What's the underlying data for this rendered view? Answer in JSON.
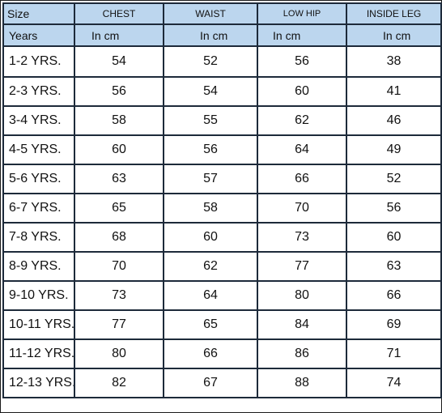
{
  "header": {
    "size": "Size",
    "chest": "CHEST",
    "waist": "WAIST",
    "low_hip": "LOW HIP",
    "inside_leg": "INSIDE LEG"
  },
  "units": {
    "years": "Years",
    "chest": "In  cm",
    "waist": "In cm",
    "low_hip": "In  cm",
    "inside_leg": "In cm"
  },
  "rows": [
    {
      "size": "1-2 YRS.",
      "chest": "54",
      "waist": "52",
      "low_hip": "56",
      "inside_leg": "38"
    },
    {
      "size": "2-3 YRS.",
      "chest": "56",
      "waist": "54",
      "low_hip": "60",
      "inside_leg": "41"
    },
    {
      "size": "3-4 YRS.",
      "chest": "58",
      "waist": "55",
      "low_hip": "62",
      "inside_leg": "46"
    },
    {
      "size": "4-5 YRS.",
      "chest": "60",
      "waist": "56",
      "low_hip": "64",
      "inside_leg": "49"
    },
    {
      "size": "5-6 YRS.",
      "chest": "63",
      "waist": "57",
      "low_hip": "66",
      "inside_leg": "52"
    },
    {
      "size": "6-7 YRS.",
      "chest": "65",
      "waist": "58",
      "low_hip": "70",
      "inside_leg": "56"
    },
    {
      "size": "7-8 YRS.",
      "chest": "68",
      "waist": "60",
      "low_hip": "73",
      "inside_leg": "60"
    },
    {
      "size": "8-9 YRS.",
      "chest": "70",
      "waist": "62",
      "low_hip": "77",
      "inside_leg": "63"
    },
    {
      "size": "9-10 YRS.",
      "chest": "73",
      "waist": "64",
      "low_hip": "80",
      "inside_leg": "66"
    },
    {
      "size": "10-11 YRS.",
      "chest": "77",
      "waist": "65",
      "low_hip": "84",
      "inside_leg": "69"
    },
    {
      "size": "11-12 YRS.",
      "chest": "80",
      "waist": "66",
      "low_hip": "86",
      "inside_leg": "71"
    },
    {
      "size": "12-13 YRS.",
      "chest": "82",
      "waist": "67",
      "low_hip": "88",
      "inside_leg": "74"
    }
  ],
  "colors": {
    "header_bg": "#bcd6ee",
    "border": "#1d2a3a"
  }
}
